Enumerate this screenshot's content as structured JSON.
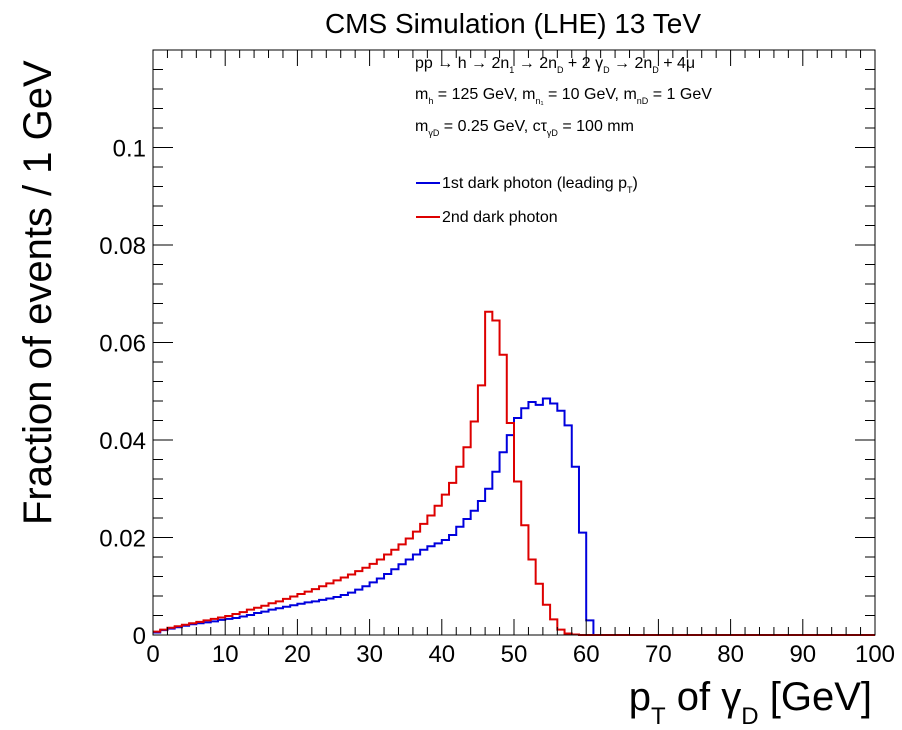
{
  "chart_data": {
    "type": "line",
    "title": "CMS Simulation (LHE) 13 TeV",
    "xlabel": {
      "main": "p",
      "main_sub": "T",
      "middle": " of ",
      "symbol": "γ",
      "symbol_sub": "D",
      "unit": " [GeV]"
    },
    "ylabel": "Fraction of events / 1 GeV",
    "xlim": [
      0,
      100
    ],
    "ylim": [
      0,
      0.12
    ],
    "x_ticks": [
      0,
      10,
      20,
      30,
      40,
      50,
      60,
      70,
      80,
      90,
      100
    ],
    "x_tick_labels": [
      "0",
      "10",
      "20",
      "30",
      "40",
      "50",
      "60",
      "70",
      "80",
      "90",
      "100"
    ],
    "y_ticks": [
      0,
      0.02,
      0.04,
      0.06,
      0.08,
      0.1
    ],
    "y_tick_labels": [
      "0",
      "0.02",
      "0.04",
      "0.06",
      "0.08",
      "0.1"
    ],
    "grid": false,
    "legend_position": "upper-center",
    "annotations": [
      {
        "parts": [
          {
            "t": "pp → h → 2n"
          },
          {
            "t": "1",
            "sub": true
          },
          {
            "t": " → 2n"
          },
          {
            "t": "D",
            "sub": true
          },
          {
            "t": " + 2 γ"
          },
          {
            "t": "D",
            "sub": true
          },
          {
            "t": " → 2n"
          },
          {
            "t": "D",
            "sub": true
          },
          {
            "t": " + 4μ"
          }
        ]
      },
      {
        "parts": [
          {
            "t": "m"
          },
          {
            "t": "h",
            "sub": true
          },
          {
            "t": " = 125 GeV, m"
          },
          {
            "t": "n₁",
            "sub": true
          },
          {
            "t": " = 10 GeV, m"
          },
          {
            "t": "n_D",
            "sub": true
          },
          {
            "t": " = 1 GeV"
          }
        ]
      },
      {
        "parts": [
          {
            "t": "m"
          },
          {
            "t": "γ_D",
            "sub": true
          },
          {
            "t": " = 0.25 GeV, cτ"
          },
          {
            "t": "γ_D",
            "sub": true
          },
          {
            "t": " = 100 mm"
          }
        ]
      }
    ],
    "series": [
      {
        "name": "1st dark photon (leading pT)",
        "legend_parts": [
          {
            "t": "1st dark photon (leading p"
          },
          {
            "t": "T",
            "sub": true
          },
          {
            "t": ")"
          }
        ],
        "color": "#0000dd",
        "bin_edges_start": 0,
        "bin_width": 1,
        "values": [
          0.0005,
          0.001,
          0.0013,
          0.0016,
          0.0019,
          0.0022,
          0.0024,
          0.0026,
          0.0028,
          0.0031,
          0.0033,
          0.0035,
          0.0038,
          0.0041,
          0.0045,
          0.0048,
          0.0052,
          0.0055,
          0.0058,
          0.0061,
          0.0064,
          0.0067,
          0.0069,
          0.0072,
          0.0075,
          0.0078,
          0.0082,
          0.0087,
          0.0093,
          0.01,
          0.0108,
          0.0116,
          0.0125,
          0.0135,
          0.0145,
          0.0155,
          0.0165,
          0.0175,
          0.0182,
          0.0188,
          0.0195,
          0.0205,
          0.0222,
          0.0238,
          0.0255,
          0.0275,
          0.03,
          0.0335,
          0.0375,
          0.041,
          0.0445,
          0.0465,
          0.0478,
          0.0472,
          0.0485,
          0.0475,
          0.046,
          0.043,
          0.0345,
          0.021,
          0.003,
          0,
          0,
          0,
          0,
          0,
          0,
          0,
          0,
          0,
          0,
          0,
          0,
          0,
          0,
          0,
          0,
          0,
          0,
          0,
          0,
          0,
          0,
          0,
          0,
          0,
          0,
          0,
          0,
          0,
          0,
          0,
          0,
          0,
          0,
          0,
          0,
          0,
          0,
          0
        ]
      },
      {
        "name": "2nd dark photon",
        "legend_parts": [
          {
            "t": "2nd dark photon"
          }
        ],
        "color": "#dd0000",
        "bin_edges_start": 0,
        "bin_width": 1,
        "values": [
          0.0007,
          0.0011,
          0.0015,
          0.0018,
          0.0021,
          0.0024,
          0.0027,
          0.003,
          0.0033,
          0.0036,
          0.0039,
          0.0043,
          0.0047,
          0.0052,
          0.0056,
          0.006,
          0.0065,
          0.0069,
          0.0074,
          0.0079,
          0.0084,
          0.0089,
          0.0094,
          0.01,
          0.0106,
          0.0112,
          0.0118,
          0.0124,
          0.0131,
          0.0138,
          0.0146,
          0.0155,
          0.0165,
          0.0175,
          0.0186,
          0.0198,
          0.0212,
          0.0228,
          0.0245,
          0.0265,
          0.0288,
          0.0312,
          0.0345,
          0.0385,
          0.0438,
          0.0512,
          0.0663,
          0.0645,
          0.0575,
          0.0435,
          0.0315,
          0.0225,
          0.0155,
          0.0105,
          0.0062,
          0.0032,
          0.0011,
          0.0003,
          0.0001,
          0,
          0,
          0,
          0,
          0,
          0,
          0,
          0,
          0,
          0,
          0,
          0,
          0,
          0,
          0,
          0,
          0,
          0,
          0,
          0,
          0,
          0,
          0,
          0,
          0,
          0,
          0,
          0,
          0,
          0,
          0,
          0,
          0,
          0,
          0,
          0,
          0,
          0,
          0,
          0,
          0
        ]
      }
    ]
  }
}
